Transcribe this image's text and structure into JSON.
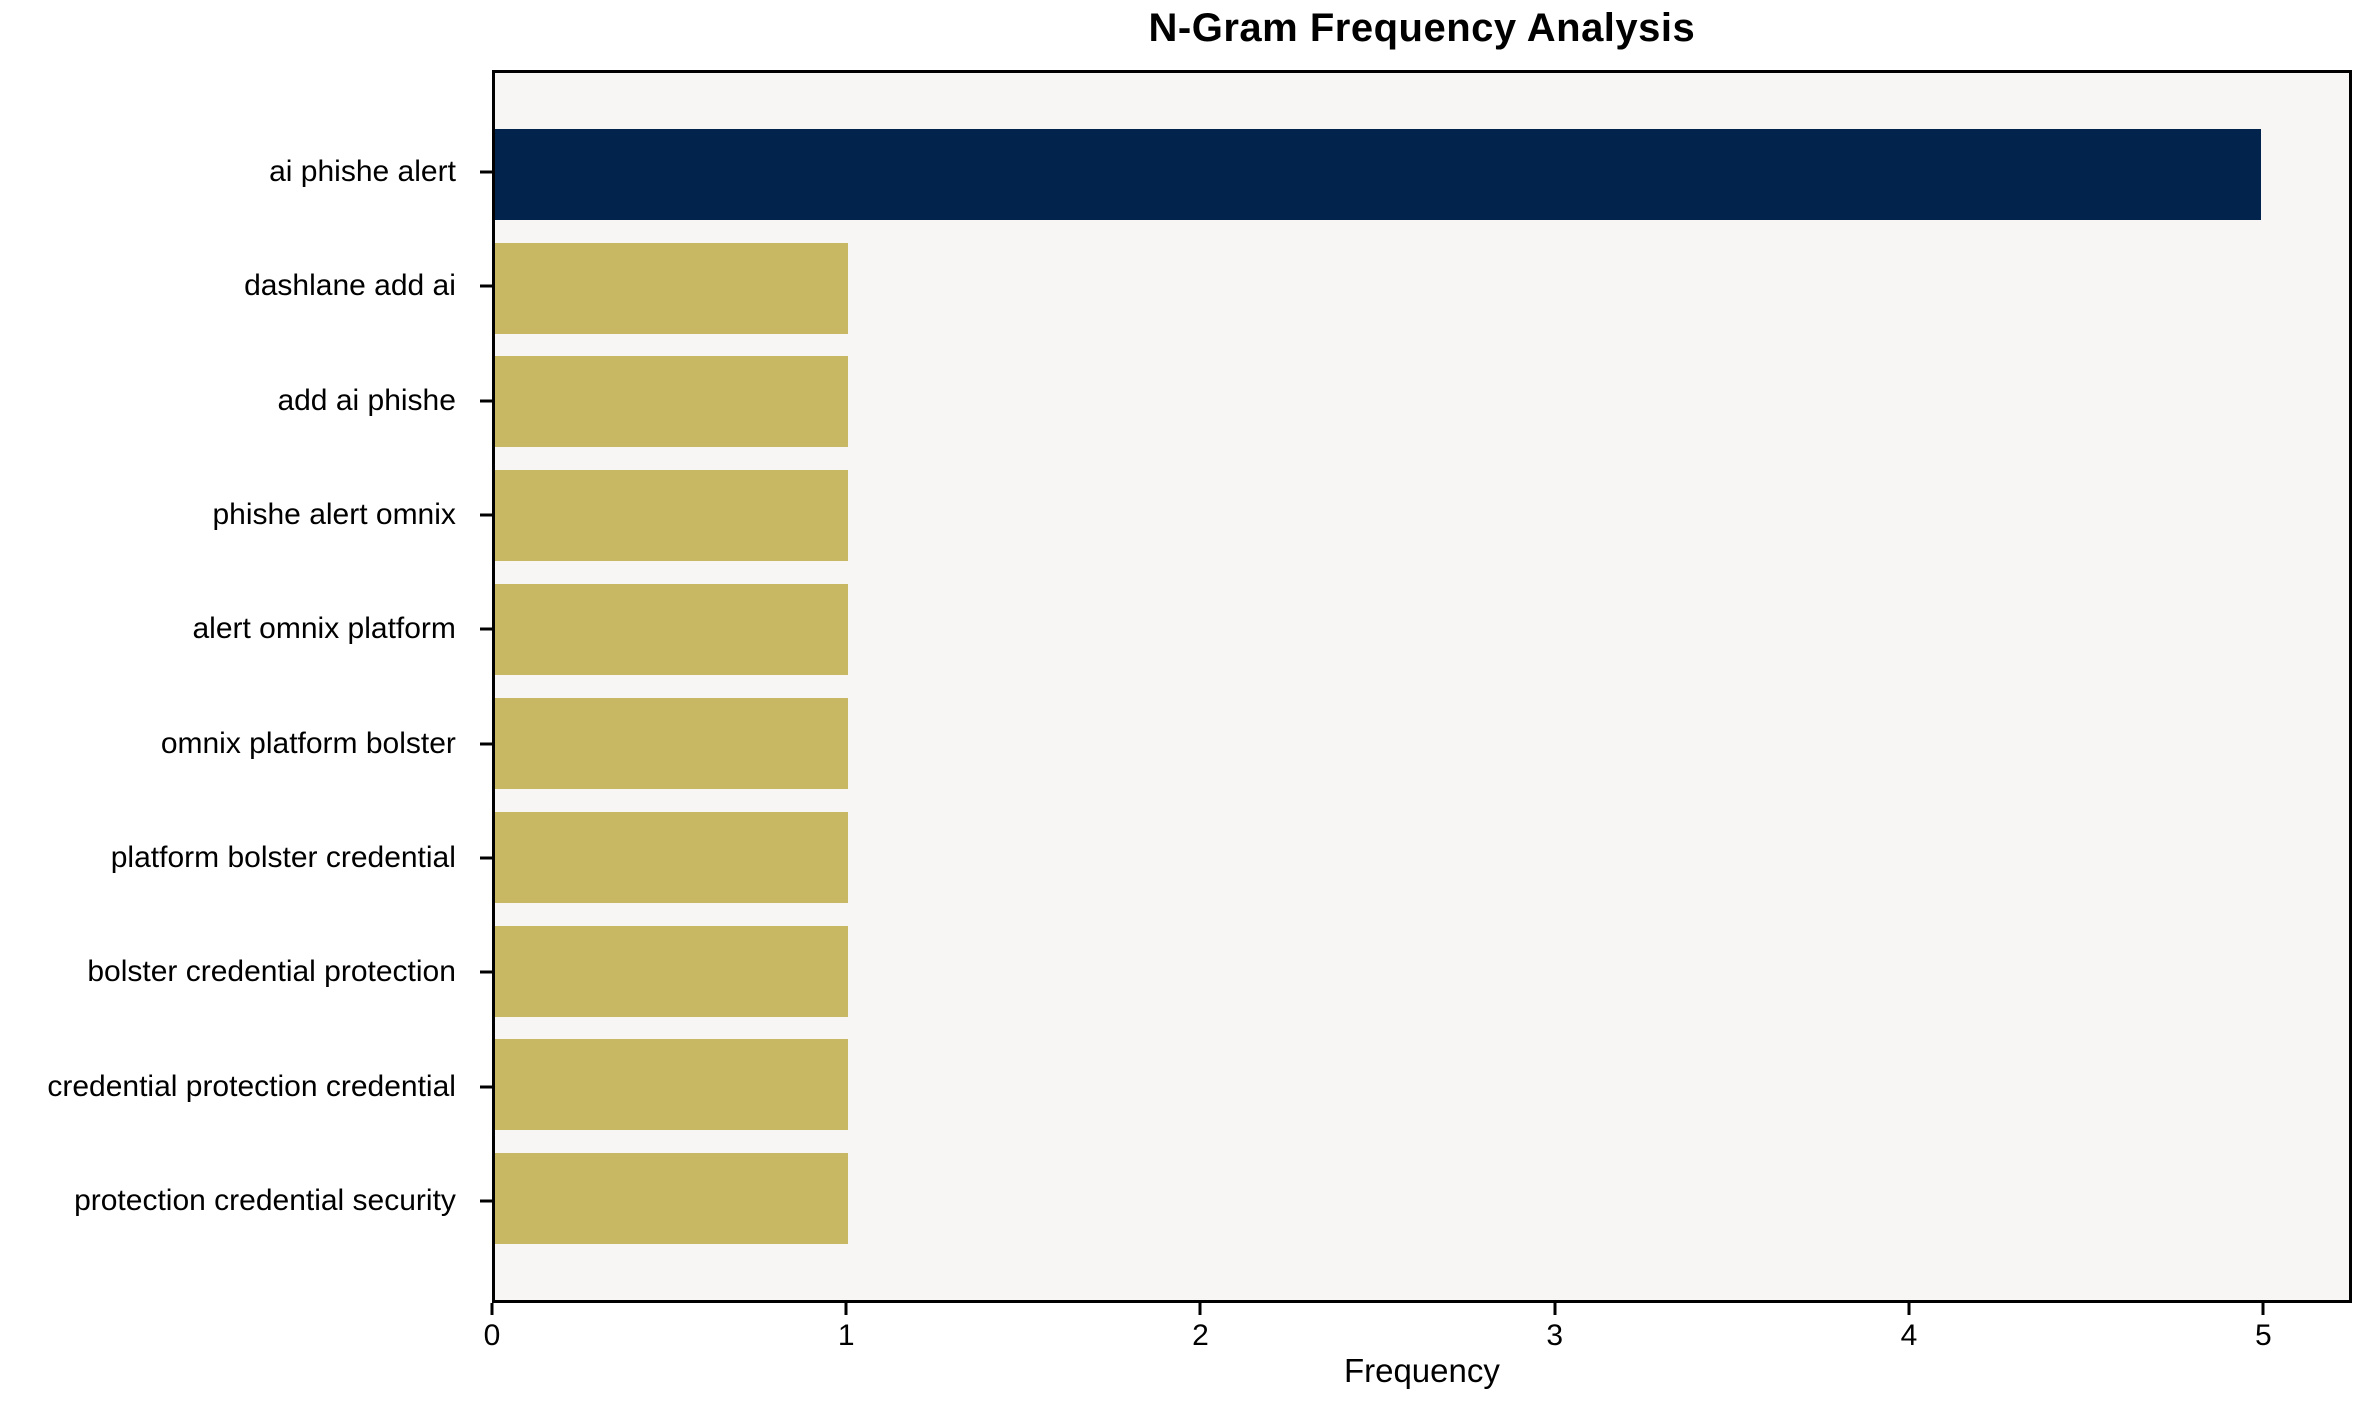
{
  "chart_data": {
    "type": "bar",
    "orientation": "horizontal",
    "title": "N-Gram Frequency Analysis",
    "xlabel": "Frequency",
    "ylabel": "",
    "categories": [
      "ai phishe alert",
      "dashlane add ai",
      "add ai phishe",
      "phishe alert omnix",
      "alert omnix platform",
      "omnix platform bolster",
      "platform bolster credential",
      "bolster credential protection",
      "credential protection credential",
      "protection credential security"
    ],
    "values": [
      5,
      1,
      1,
      1,
      1,
      1,
      1,
      1,
      1,
      1
    ],
    "bar_colors": [
      "#01234c",
      "#c9b863",
      "#c9b863",
      "#c9b863",
      "#c9b863",
      "#c9b863",
      "#c9b863",
      "#c9b863",
      "#c9b863",
      "#c9b863"
    ],
    "xticks": [
      0,
      1,
      2,
      3,
      4,
      5
    ],
    "xlim": [
      0,
      5.25
    ],
    "grid": false,
    "legend": null,
    "colors": {
      "highlight_bar": "#01234c",
      "default_bar": "#c9b863",
      "plot_background": "#f7f6f4",
      "figure_background": "#ffffff",
      "spine": "#000000",
      "text": "#000000"
    }
  }
}
